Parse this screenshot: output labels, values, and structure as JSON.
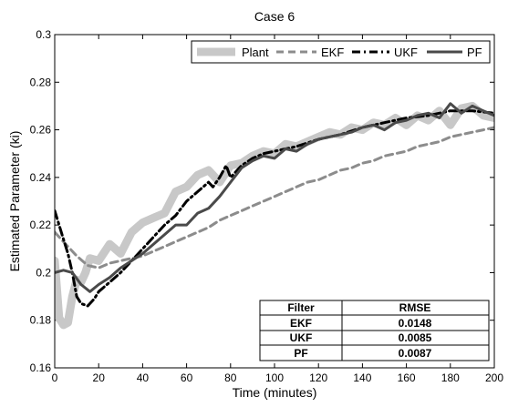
{
  "chart_data": {
    "type": "line",
    "title": "Case 6",
    "xlabel": "Time (minutes)",
    "ylabel": "Estimated Parameter (ki)",
    "xlim": [
      0,
      200
    ],
    "ylim": [
      0.16,
      0.3
    ],
    "x_ticks": [
      0,
      20,
      40,
      60,
      80,
      100,
      120,
      140,
      160,
      180,
      200
    ],
    "y_ticks": [
      0.16,
      0.18,
      0.2,
      0.22,
      0.24,
      0.26,
      0.28,
      0.3
    ],
    "grid": false,
    "legend_position": "top-right",
    "series": [
      {
        "name": "Plant",
        "style": "thick-solid",
        "color": "#c8c8c8",
        "x": [
          0,
          2,
          4,
          6,
          8,
          10,
          12,
          14,
          16,
          20,
          25,
          30,
          35,
          40,
          45,
          50,
          55,
          60,
          65,
          70,
          75,
          80,
          85,
          90,
          95,
          100,
          105,
          110,
          115,
          120,
          125,
          130,
          135,
          140,
          145,
          150,
          155,
          160,
          165,
          170,
          175,
          180,
          185,
          190,
          195,
          200
        ],
        "y": [
          0.205,
          0.181,
          0.178,
          0.179,
          0.19,
          0.197,
          0.196,
          0.2,
          0.206,
          0.205,
          0.212,
          0.208,
          0.217,
          0.221,
          0.223,
          0.225,
          0.234,
          0.236,
          0.241,
          0.243,
          0.238,
          0.245,
          0.246,
          0.249,
          0.251,
          0.25,
          0.254,
          0.253,
          0.255,
          0.257,
          0.259,
          0.258,
          0.261,
          0.26,
          0.263,
          0.262,
          0.265,
          0.262,
          0.266,
          0.264,
          0.268,
          0.262,
          0.269,
          0.27,
          0.266,
          0.265
        ]
      },
      {
        "name": "EKF",
        "style": "dashed",
        "color": "#8c8c8c",
        "x": [
          0,
          5,
          10,
          15,
          20,
          25,
          30,
          35,
          40,
          45,
          50,
          55,
          60,
          65,
          70,
          75,
          80,
          85,
          90,
          95,
          100,
          105,
          110,
          115,
          120,
          125,
          130,
          135,
          140,
          145,
          150,
          155,
          160,
          165,
          170,
          175,
          180,
          185,
          190,
          195,
          200
        ],
        "y": [
          0.217,
          0.212,
          0.207,
          0.203,
          0.202,
          0.204,
          0.205,
          0.206,
          0.207,
          0.209,
          0.211,
          0.213,
          0.215,
          0.217,
          0.219,
          0.222,
          0.224,
          0.226,
          0.228,
          0.23,
          0.232,
          0.234,
          0.236,
          0.238,
          0.239,
          0.241,
          0.243,
          0.244,
          0.246,
          0.247,
          0.249,
          0.25,
          0.251,
          0.253,
          0.254,
          0.255,
          0.257,
          0.258,
          0.259,
          0.26,
          0.261
        ]
      },
      {
        "name": "UKF",
        "style": "dash-dot",
        "color": "#000000",
        "x": [
          0,
          2,
          4,
          6,
          8,
          10,
          12,
          15,
          18,
          20,
          25,
          30,
          35,
          40,
          45,
          50,
          55,
          60,
          65,
          70,
          72,
          75,
          78,
          80,
          85,
          90,
          95,
          100,
          110,
          120,
          130,
          140,
          150,
          160,
          170,
          180,
          190,
          200
        ],
        "y": [
          0.226,
          0.22,
          0.214,
          0.208,
          0.2,
          0.19,
          0.187,
          0.186,
          0.189,
          0.192,
          0.196,
          0.2,
          0.205,
          0.21,
          0.215,
          0.22,
          0.224,
          0.23,
          0.234,
          0.238,
          0.236,
          0.24,
          0.245,
          0.24,
          0.245,
          0.248,
          0.25,
          0.251,
          0.253,
          0.256,
          0.258,
          0.261,
          0.263,
          0.265,
          0.266,
          0.268,
          0.268,
          0.267
        ]
      },
      {
        "name": "PF",
        "style": "solid",
        "color": "#4a4a4a",
        "x": [
          0,
          4,
          8,
          12,
          16,
          20,
          25,
          30,
          35,
          40,
          45,
          50,
          55,
          60,
          65,
          70,
          75,
          80,
          85,
          90,
          95,
          100,
          105,
          110,
          115,
          120,
          125,
          130,
          135,
          140,
          145,
          150,
          155,
          160,
          165,
          170,
          175,
          180,
          185,
          190,
          195,
          200
        ],
        "y": [
          0.2,
          0.201,
          0.2,
          0.195,
          0.192,
          0.195,
          0.198,
          0.202,
          0.205,
          0.208,
          0.212,
          0.216,
          0.22,
          0.22,
          0.225,
          0.227,
          0.232,
          0.238,
          0.244,
          0.247,
          0.249,
          0.248,
          0.252,
          0.251,
          0.254,
          0.256,
          0.257,
          0.258,
          0.259,
          0.261,
          0.262,
          0.26,
          0.263,
          0.264,
          0.266,
          0.267,
          0.265,
          0.271,
          0.267,
          0.27,
          0.268,
          0.266
        ]
      }
    ],
    "table": {
      "headers": [
        "Filter",
        "RMSE"
      ],
      "rows": [
        [
          "EKF",
          "0.0148"
        ],
        [
          "UKF",
          "0.0085"
        ],
        [
          "PF",
          "0.0087"
        ]
      ]
    }
  }
}
